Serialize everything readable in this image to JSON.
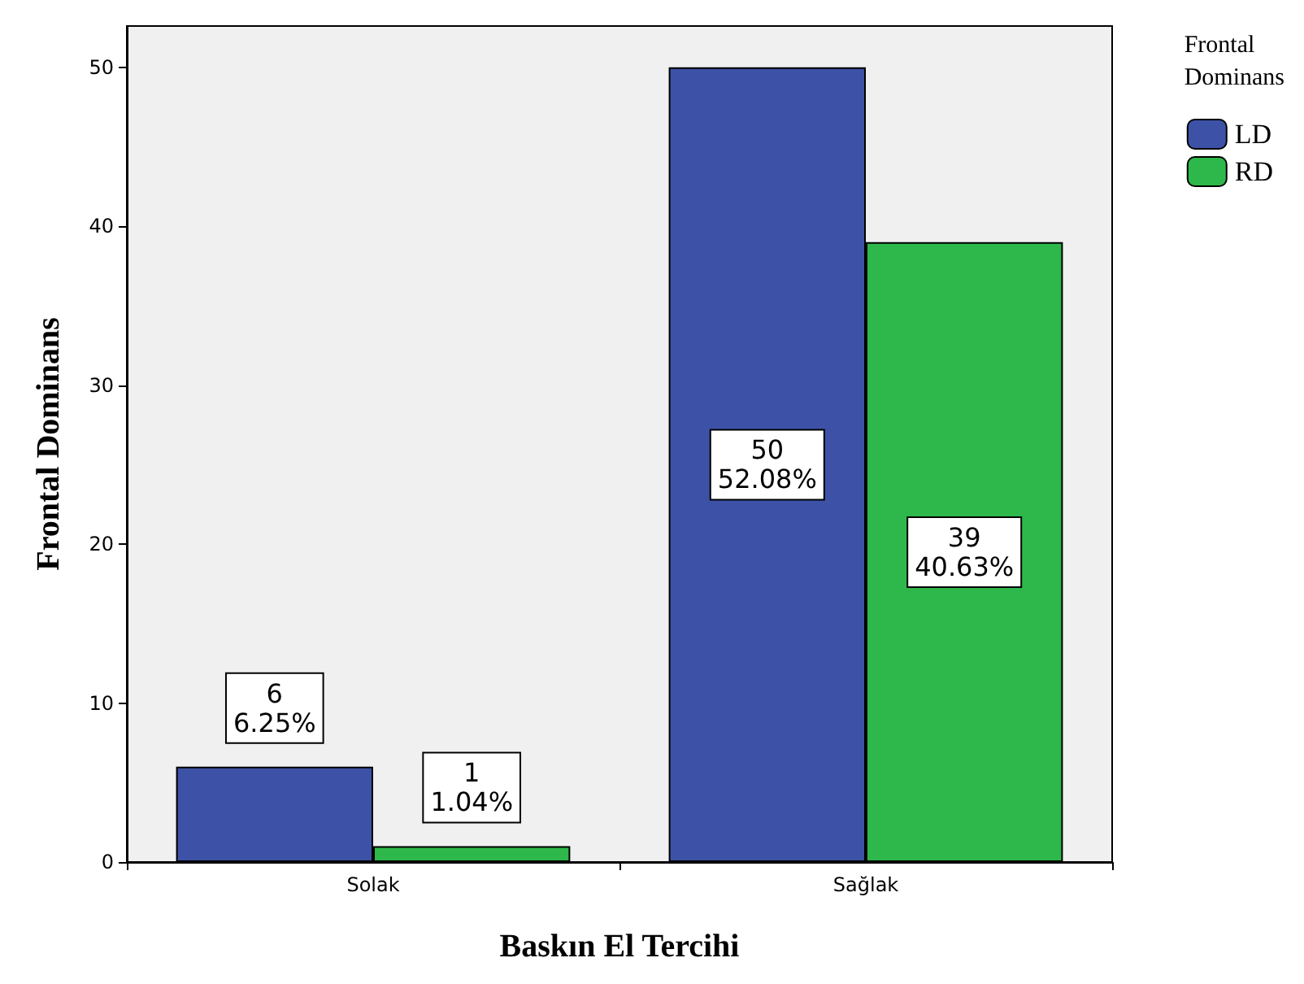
{
  "chart_data": {
    "type": "bar",
    "xlabel": "Baskın El Tercihi",
    "ylabel": "Frontal Dominans",
    "legend_title": "Frontal Dominans",
    "legend": "top right",
    "categories": [
      "Solak",
      "Sağlak"
    ],
    "series": [
      {
        "name": "LD",
        "color": "#3d52a6",
        "values": [
          6,
          50
        ],
        "value_labels": [
          "6\n6.25%",
          "50\n52.08%"
        ]
      },
      {
        "name": "RD",
        "color": "#2eb84b",
        "values": [
          1,
          39
        ],
        "value_labels": [
          "1\n1.04%",
          "39\n40.63%"
        ]
      }
    ],
    "ylim": [
      0,
      52.6
    ],
    "yticks": [
      0,
      10,
      20,
      30,
      40,
      50
    ],
    "grid": false
  }
}
